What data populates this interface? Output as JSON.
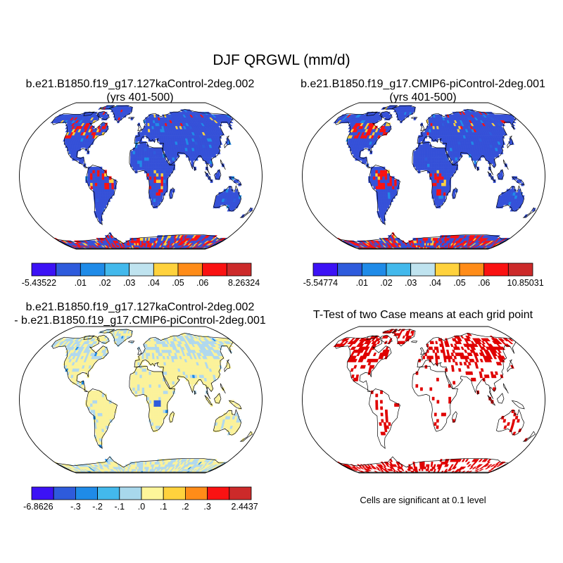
{
  "page_title": "DJF QRGWL (mm/d)",
  "chart_data": [
    {
      "type": "heatmap",
      "title_line1": "b.e21.B1850.f19_g17.127kaControl-2deg.002",
      "title_line2": "(yrs 401-500)",
      "projection": "Robinson world map",
      "colorbar": {
        "colors": [
          "#3c12f5",
          "#2e5bdc",
          "#1f8be8",
          "#43b9ec",
          "#bfe3ef",
          "#ffd23d",
          "#ff8c18",
          "#fa1212",
          "#cc2a2a"
        ],
        "tick_labels": [
          "-5.43522",
          ".01",
          ".02",
          ".03",
          ".04",
          ".05",
          ".06",
          "8.26324"
        ],
        "min": -5.43522,
        "max": 8.26324
      }
    },
    {
      "type": "heatmap",
      "title_line1": "b.e21.B1850.f19_g17.CMIP6-piControl-2deg.001",
      "title_line2": "(yrs 401-500)",
      "projection": "Robinson world map",
      "colorbar": {
        "colors": [
          "#3c12f5",
          "#2e5bdc",
          "#1f8be8",
          "#43b9ec",
          "#bfe3ef",
          "#ffd23d",
          "#ff8c18",
          "#fa1212",
          "#cc2a2a"
        ],
        "tick_labels": [
          "-5.54774",
          ".01",
          ".02",
          ".03",
          ".04",
          ".05",
          ".06",
          "10.85031"
        ],
        "min": -5.54774,
        "max": 10.85031
      }
    },
    {
      "type": "heatmap",
      "title_line1": "b.e21.B1850.f19_g17.127kaControl-2deg.002",
      "title_line2": "- b.e21.B1850.f19_g17.CMIP6-piControl-2deg.001",
      "projection": "Robinson world map",
      "colorbar": {
        "colors": [
          "#3c12f5",
          "#2e5bdc",
          "#1f8be8",
          "#43b9ec",
          "#a8d8ec",
          "#fdf69a",
          "#ffd23d",
          "#ff8c18",
          "#fa1212",
          "#cc2a2a"
        ],
        "tick_labels": [
          "-6.8626",
          "-.3",
          "-.2",
          "-.1",
          ".0",
          ".1",
          ".2",
          ".3",
          "2.4437"
        ],
        "min": -6.8626,
        "max": 2.4437
      }
    },
    {
      "type": "heatmap",
      "title_line1": "T-Test of two Case means at each grid point",
      "projection": "Robinson world map",
      "significance_color": "#e00000",
      "note": "Cells are significant at 0.1 level"
    }
  ],
  "colors": {
    "land_mean": "#3550d8",
    "land_diff": "#fbf29a",
    "diff_alt": "#b0d8ee",
    "sig": "#e00000",
    "coast": "#000000"
  }
}
